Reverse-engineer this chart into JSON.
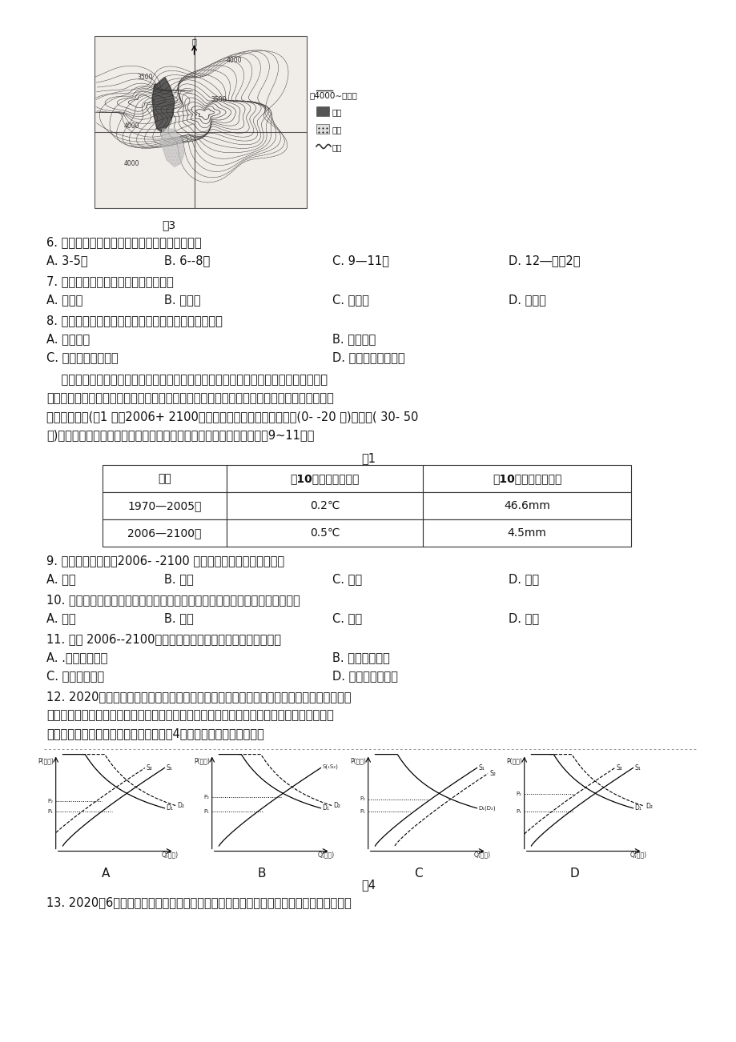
{
  "background_color": "#ffffff",
  "page_width": 9.2,
  "page_height": 13.02,
  "text_color": "#1a1a1a",
  "map_caption": "嘹3",
  "q6_text": "6. 水库修建前，布伦口湖湖水的最高水位出现在",
  "q6_a": "A. 3-5月",
  "q6_b": "B. 6--8月",
  "q6_c": "C. 9—11月",
  "q6_d": "D. 12―次年2月",
  "q7_text": "7. 推断形成白沙山的主导风向最可能是",
  "q7_a": "A. 偏东风",
  "q7_b": "B. 偏西风",
  "q7_c": "C. 偏北风",
  "q7_d": "D. 偏南风",
  "q8_text": "8. 相较于湖面，水库建成后白沙山的相对高度比建成前",
  "q8_a": "A. 整体升高",
  "q8_b": "B. 整体不变",
  "q8_c": "C. 年内季节变化减小",
  "q8_d": "D. 年内季节变化增大",
  "para1a": "    川西云杉林是青藏高原海拔分布最高的树种，对气候变化十分敏感。科学家们通过比较",
  "para1b": "该树种不同海拔、树龄、不同时期的生物量变化来揭示其对气候变化的响应差异。研究显示，",
  "para1c": "两个时期相比(表1 ），2006+ 2100年，该树种的生物量增加，短期(0- -20 年)和中期( 30- 50",
  "para1d": "年)幼龄树生物量增加最多，长期则为中龄树生物量增加最多。据此完扑9~11题。",
  "table_title": "表1",
  "table_h1": "时期",
  "table_h2": "每10年气温平均升高",
  "table_h3": "每10年降水平均增加",
  "table_r1c1": "1970—2005年",
  "table_r1c2": "0.2℃",
  "table_r1c3": "46.6mm",
  "table_r2c1": "2006—2100年",
  "table_r2c2": "0.5℃",
  "table_r2c3": "4.5mm",
  "q9_text": "9. 从表格数据判断，2006- -2100 年青藏高原的气候变化趋势为",
  "q9_a": "A. 暖湿",
  "q9_b": "B. 暖干",
  "q9_c": "C. 冷湿",
  "q9_d": "D. 冷干",
  "q10_text": "10. 中、短期川西云杉幼龄树生物量的增加最多，其生物量增长的主导因素应是",
  "q10_a": "A. 土壤",
  "q10_b": "B. 光照",
  "q10_c": "C. 温度",
  "q10_d": "D. 水分",
  "q11_text": "11. 推测 2006--2100年，相同树龄的川西云杉林生物量的增加",
  "q11_a": "A. .高海拔区最多",
  "q11_b": "B. 中海拔区最多",
  "q11_c": "C. 低海拔区最多",
  "q11_d": "D. 各海拔大致相同",
  "q12_text1": "12. 2020年夏季，我国多地出现大范围降雨降水，部分地区出现洪涝灾害，导致很多蔬菜生",
  "q12_text2": "产基地减产，甚至颗粒无收。在此期间，伴随着国内疫情形势好转，学校复学，餐饮业复苏，",
  "q12_text3": "引发了消费者对蔬菜价格的担忧。下列图4能够正确描绘这一担忧的是",
  "fig4_caption": "嘹4",
  "fig4_labels": [
    "A",
    "B",
    "C",
    "D"
  ],
  "q13_text": "13. 2020年6月，国企改革三年行动方案通过，首次提出了支持国企民企之间兼并重组和战"
}
